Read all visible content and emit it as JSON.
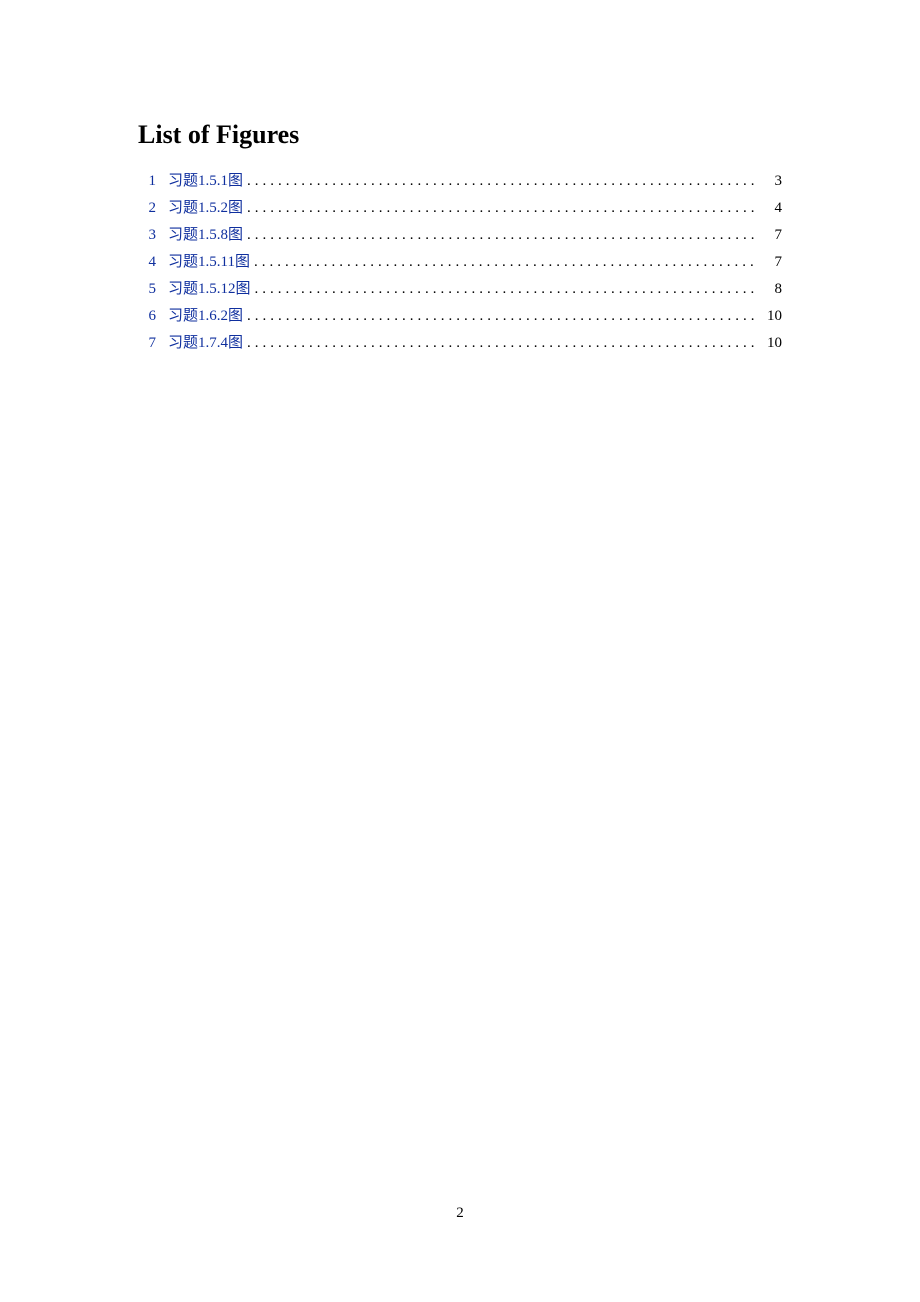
{
  "title": "List of Figures",
  "entries": [
    {
      "num": "1",
      "label": "习题1.5.1图",
      "page": "3"
    },
    {
      "num": "2",
      "label": "习题1.5.2图",
      "page": "4"
    },
    {
      "num": "3",
      "label": "习题1.5.8图",
      "page": "7"
    },
    {
      "num": "4",
      "label": "习题1.5.11图",
      "page": "7"
    },
    {
      "num": "5",
      "label": "习题1.5.12图",
      "page": "8"
    },
    {
      "num": "6",
      "label": "习题1.6.2图",
      "page": "10"
    },
    {
      "num": "7",
      "label": "习题1.7.4图",
      "page": "10"
    }
  ],
  "pageNumber": "2",
  "colors": {
    "link": "#0f2f9e",
    "text": "#000000",
    "bg": "#ffffff"
  }
}
